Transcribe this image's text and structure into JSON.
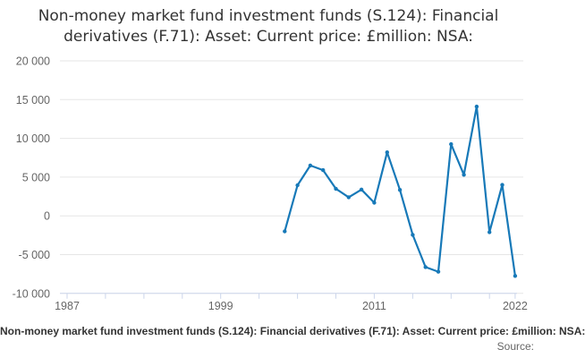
{
  "title": {
    "line1": "Non-money market fund investment funds (S.124): Financial",
    "line2": "derivatives (F.71): Asset: Current price: £million: NSA:"
  },
  "footer": {
    "series_label": "Non-money market fund investment funds (S.124): Financial derivatives (F.71): Asset: Current price: £million: NSA:",
    "source_label": "Source:"
  },
  "colors": {
    "line": "#1779b8",
    "grid": "#e6e6e6",
    "axis": "#ccd6eb",
    "tick_label": "#666666",
    "title_text": "#333333"
  },
  "chart_data": {
    "type": "line",
    "title": "Non-money market fund investment funds (S.124): Financial derivatives (F.71): Asset: Current price: £million: NSA:",
    "xlabel": "",
    "ylabel": "",
    "grid": true,
    "legend": "none",
    "xlim": [
      1987,
      2022
    ],
    "ylim": [
      -10000,
      20000
    ],
    "x": [
      2004,
      2005,
      2006,
      2007,
      2008,
      2009,
      2010,
      2011,
      2012,
      2013,
      2014,
      2015,
      2016,
      2017,
      2018,
      2019,
      2020,
      2021,
      2022
    ],
    "values": [
      -2000,
      3950,
      6500,
      5900,
      3500,
      2400,
      3400,
      1700,
      8200,
      3350,
      -2450,
      -6600,
      -7200,
      9250,
      5300,
      14100,
      -2100,
      4000,
      -7750
    ],
    "y_ticks": {
      "values": [
        20000,
        15000,
        10000,
        5000,
        0,
        -5000,
        -10000
      ],
      "labels": [
        "20 000",
        "15 000",
        "10 000",
        "5 000",
        "0",
        "-5 000",
        "-10 000"
      ]
    },
    "x_ticks": {
      "years": [
        1987,
        1990,
        1993,
        1996,
        1999,
        2002,
        2005,
        2008,
        2011,
        2014,
        2017,
        2020,
        2022
      ],
      "labels": [
        {
          "year": 1987,
          "label": "1987"
        },
        {
          "year": 1999,
          "label": "1999"
        },
        {
          "year": 2011,
          "label": "2011"
        },
        {
          "year": 2022,
          "label": "2022"
        }
      ]
    }
  }
}
